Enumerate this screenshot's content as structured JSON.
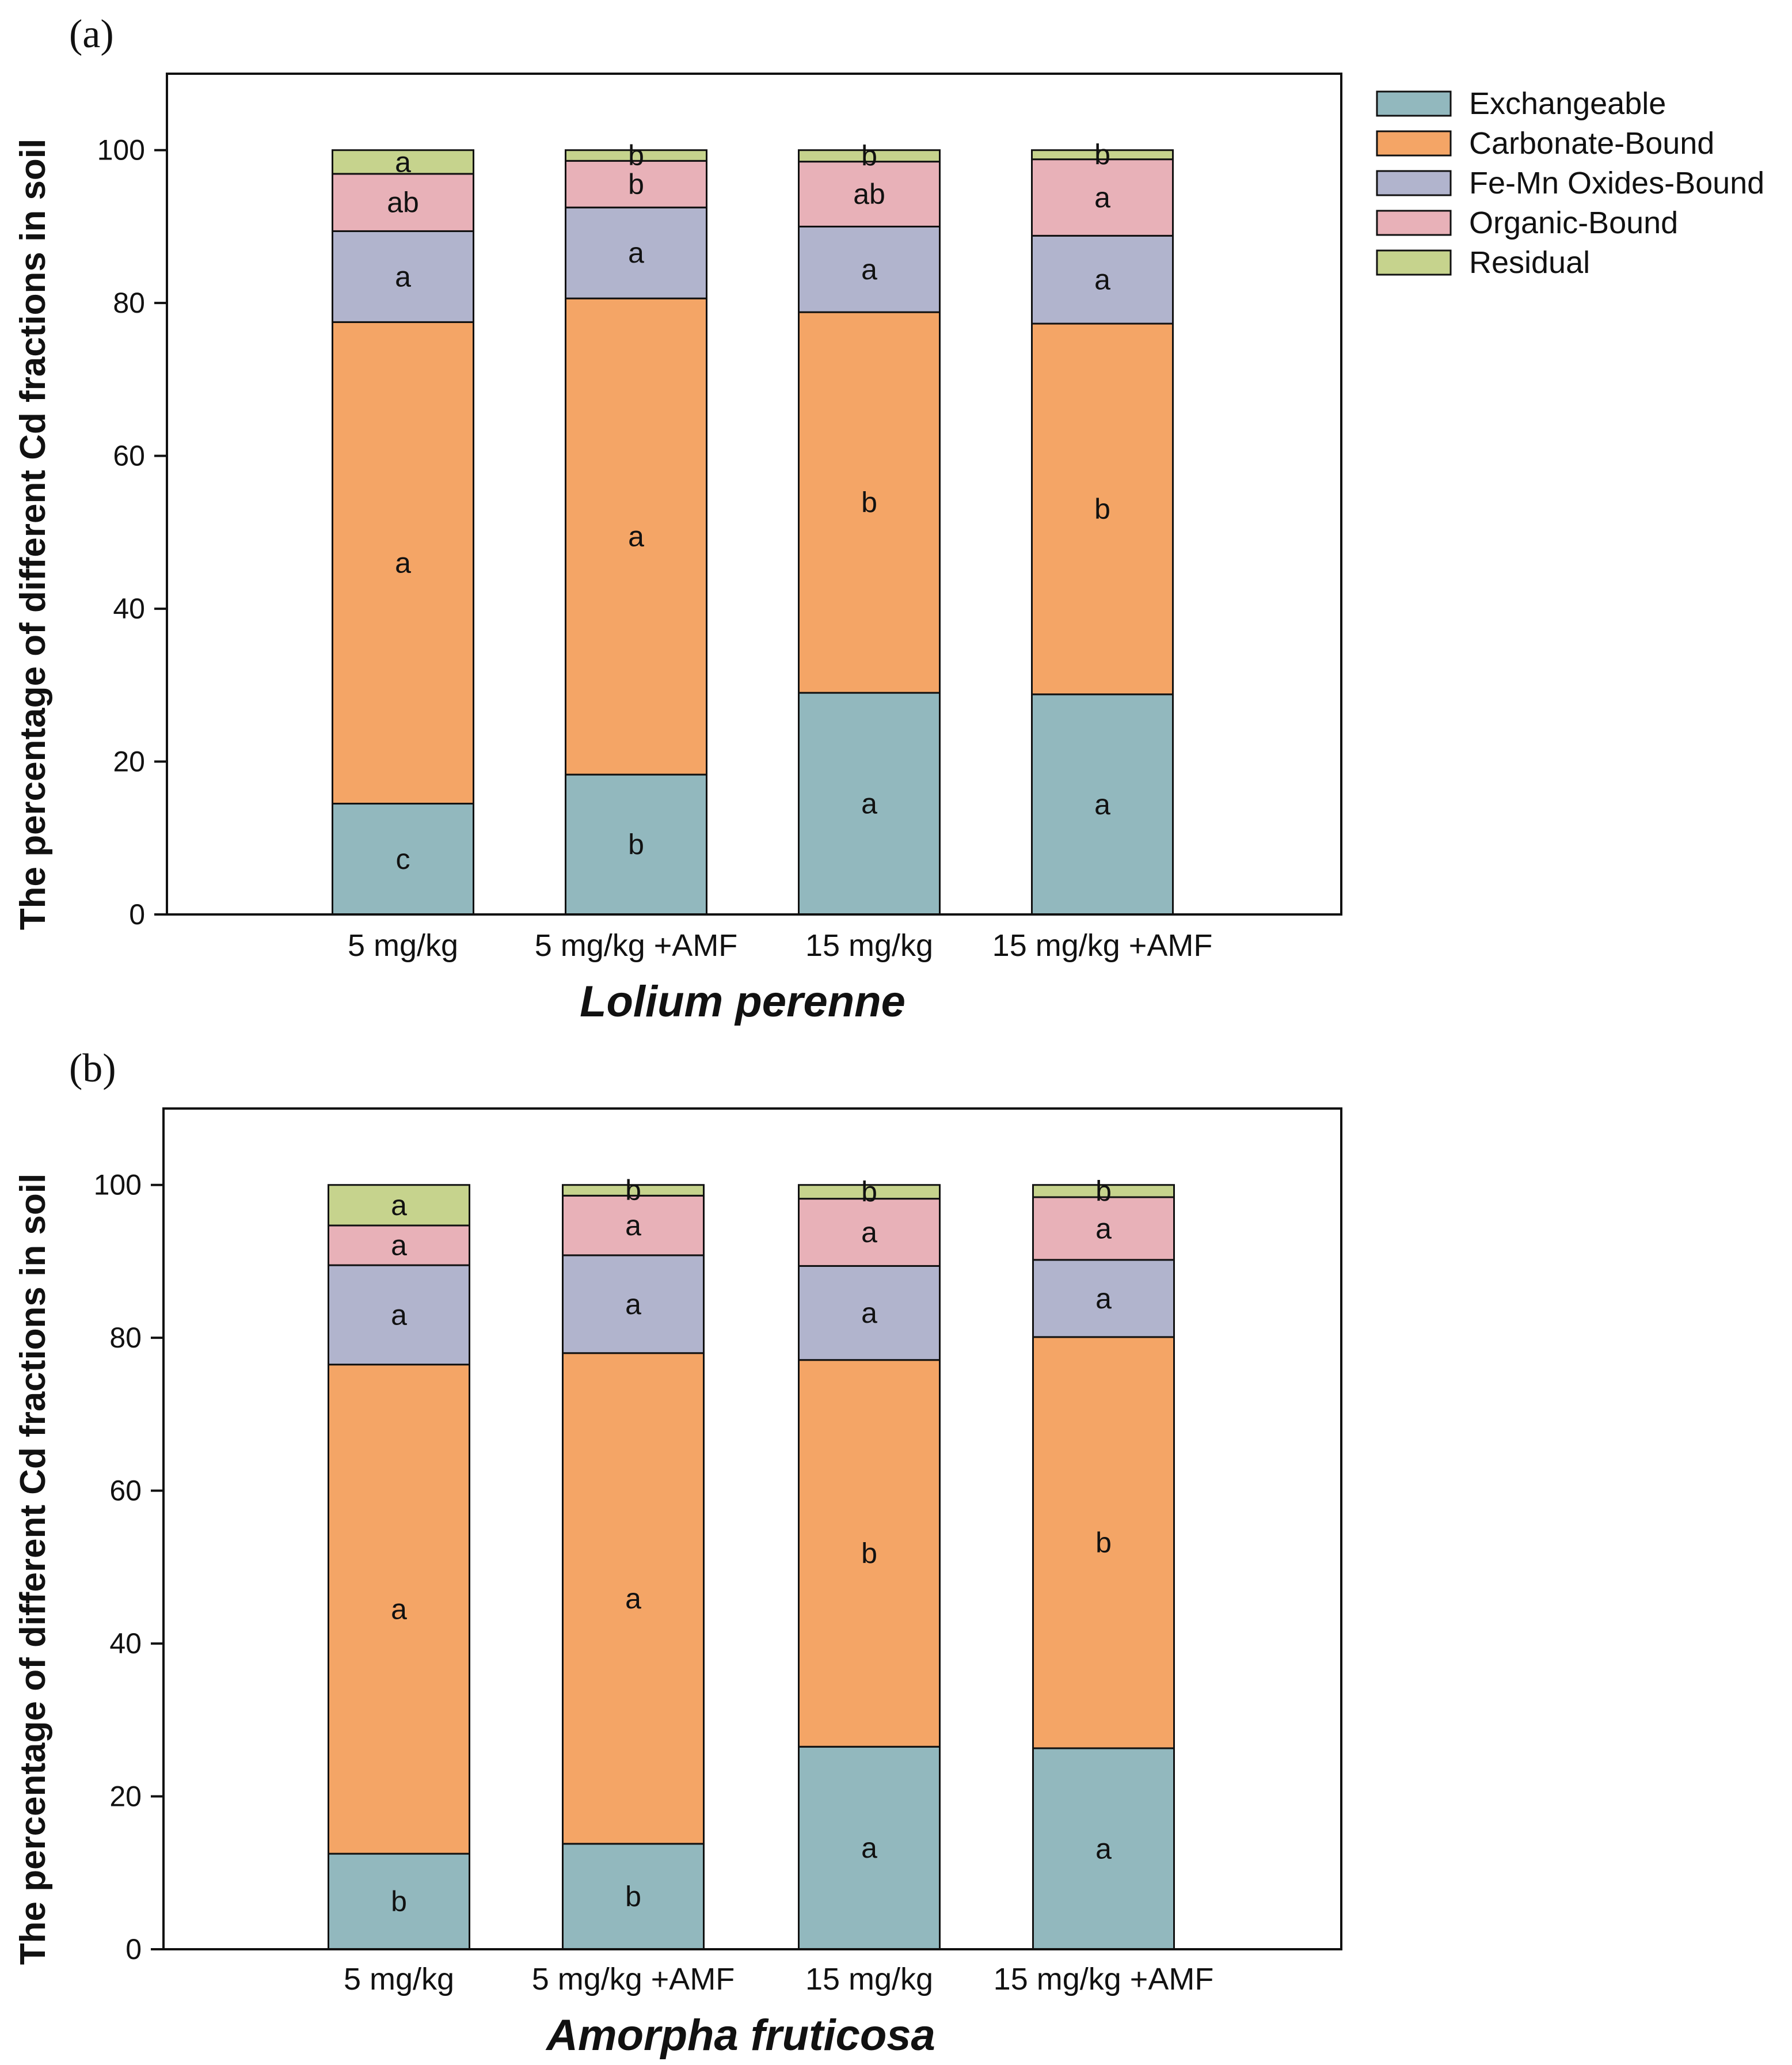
{
  "legend": [
    "Exchangeable",
    "Carbonate-Bound",
    "Fe-Mn Oxides-Bound",
    "Organic-Bound",
    "Residual"
  ],
  "colors": {
    "Exchangeable": "#92b8be",
    "Carbonate-Bound": "#f4a566",
    "Fe-Mn Oxides-Bound": "#b1b4cd",
    "Organic-Bound": "#e8b1b8",
    "Residual": "#c6d38d"
  },
  "chart_data": [
    {
      "panel": "(a)",
      "type": "bar",
      "stacked": true,
      "categories": [
        "5 mg/kg",
        "5 mg/kg +AMF",
        "15 mg/kg",
        "15 mg/kg +AMF"
      ],
      "xlabel": "Lolium perenne",
      "ylabel": "The percentage of different Cd fractions in soil",
      "ylim": [
        0,
        110
      ],
      "yticks": [
        0,
        20,
        40,
        60,
        80,
        100
      ],
      "series": [
        {
          "name": "Exchangeable",
          "values": [
            14.5,
            18.3,
            29,
            28.8
          ],
          "letters": [
            "c",
            "b",
            "a",
            "a"
          ]
        },
        {
          "name": "Carbonate-Bound",
          "values": [
            63,
            62.3,
            49.8,
            48.5
          ],
          "letters": [
            "a",
            "a",
            "b",
            "b"
          ]
        },
        {
          "name": "Fe-Mn Oxides-Bound",
          "values": [
            11.9,
            11.9,
            11.2,
            11.5
          ],
          "letters": [
            "a",
            "a",
            "a",
            "a"
          ]
        },
        {
          "name": "Organic-Bound",
          "values": [
            7.5,
            6.1,
            8.5,
            10
          ],
          "letters": [
            "ab",
            "b",
            "ab",
            "a"
          ]
        },
        {
          "name": "Residual",
          "values": [
            3.1,
            1.4,
            1.5,
            1.2
          ],
          "letters": [
            "a",
            "b",
            "b",
            "b"
          ]
        }
      ]
    },
    {
      "panel": "(b)",
      "type": "bar",
      "stacked": true,
      "categories": [
        "5 mg/kg",
        "5 mg/kg +AMF",
        "15 mg/kg",
        "15 mg/kg +AMF"
      ],
      "xlabel": "Amorpha fruticosa",
      "ylabel": "The percentage of different Cd fractions in soil",
      "ylim": [
        0,
        110
      ],
      "yticks": [
        0,
        20,
        40,
        60,
        80,
        100
      ],
      "series": [
        {
          "name": "Exchangeable",
          "values": [
            12.5,
            13.8,
            26.5,
            26.3
          ],
          "letters": [
            "b",
            "b",
            "a",
            "a"
          ]
        },
        {
          "name": "Carbonate-Bound",
          "values": [
            64,
            64.2,
            50.6,
            53.8
          ],
          "letters": [
            "a",
            "a",
            "b",
            "b"
          ]
        },
        {
          "name": "Fe-Mn Oxides-Bound",
          "values": [
            13,
            12.8,
            12.3,
            10.1
          ],
          "letters": [
            "a",
            "a",
            "a",
            "a"
          ]
        },
        {
          "name": "Organic-Bound",
          "values": [
            5.2,
            7.8,
            8.8,
            8.2
          ],
          "letters": [
            "a",
            "a",
            "a",
            "a"
          ]
        },
        {
          "name": "Residual",
          "values": [
            5.3,
            1.4,
            1.8,
            1.6
          ],
          "letters": [
            "a",
            "b",
            "b",
            "b"
          ]
        }
      ]
    }
  ]
}
